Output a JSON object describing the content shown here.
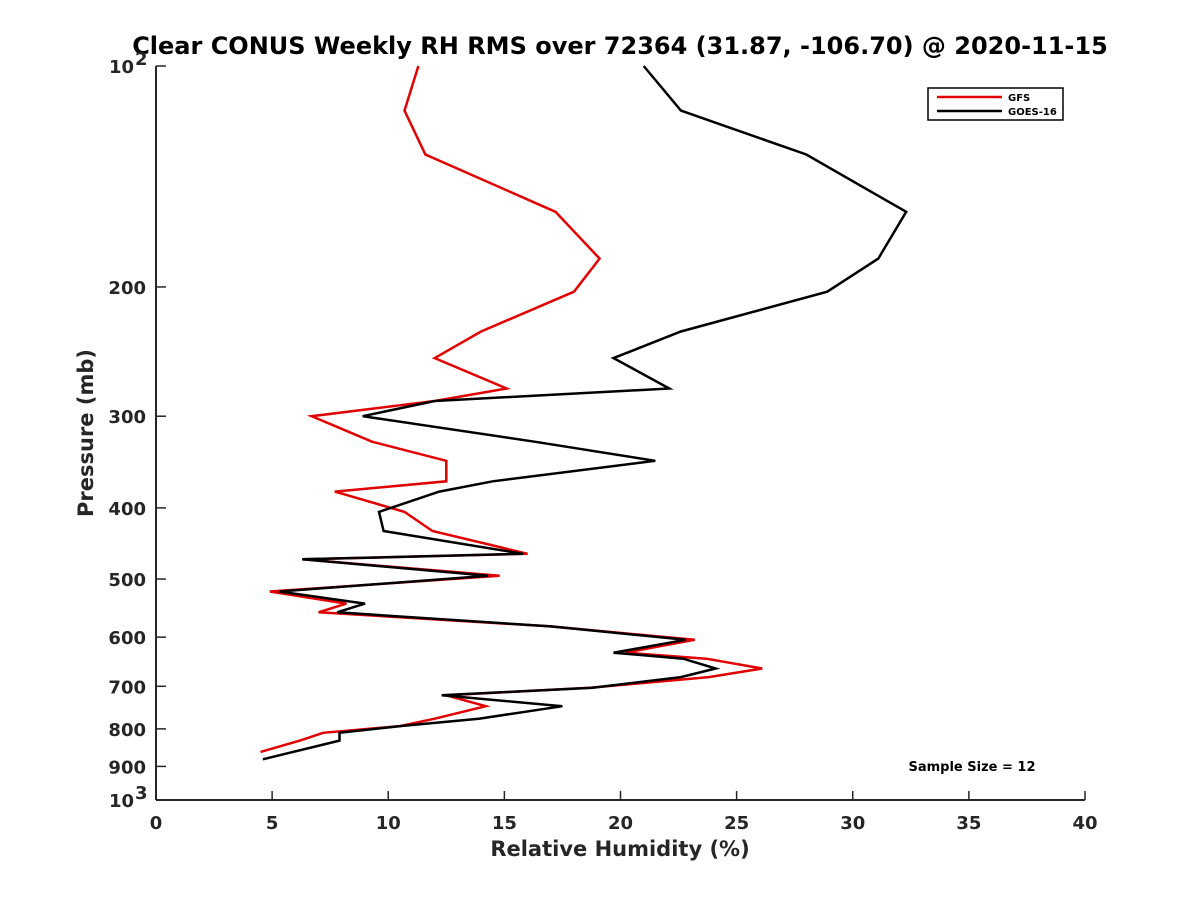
{
  "chart_data": {
    "type": "line",
    "title": "Clear CONUS Weekly RH RMS over 72364 (31.87, -106.70) @ 2020-11-15",
    "xlabel": "Relative Humidity (%)",
    "ylabel": "Pressure (mb)",
    "xlim": [
      0,
      40
    ],
    "ylim": [
      100,
      1000
    ],
    "y_scale": "log",
    "y_reversed": true,
    "x_ticks": [
      0,
      5,
      10,
      15,
      20,
      25,
      30,
      35,
      40
    ],
    "x_tick_labels": [
      "0",
      "5",
      "10",
      "15",
      "20",
      "25",
      "30",
      "35",
      "40"
    ],
    "y_ticks": [
      {
        "value": 100,
        "label": "10",
        "sup": "2"
      },
      {
        "value": 200,
        "label": "200",
        "sup": ""
      },
      {
        "value": 300,
        "label": "300",
        "sup": ""
      },
      {
        "value": 400,
        "label": "400",
        "sup": ""
      },
      {
        "value": 500,
        "label": "500",
        "sup": ""
      },
      {
        "value": 600,
        "label": "600",
        "sup": ""
      },
      {
        "value": 700,
        "label": "700",
        "sup": ""
      },
      {
        "value": 800,
        "label": "800",
        "sup": ""
      },
      {
        "value": 900,
        "label": "900",
        "sup": ""
      },
      {
        "value": 1000,
        "label": "10",
        "sup": "3"
      }
    ],
    "grid": false,
    "legend": {
      "position": "top-right",
      "entries": [
        "GFS",
        "GOES-16"
      ]
    },
    "annotation": "Sample Size = 12",
    "series": [
      {
        "name": "GFS",
        "color": "#e00000",
        "points": [
          [
            11.3,
            100
          ],
          [
            10.7,
            115
          ],
          [
            11.6,
            132
          ],
          [
            17.2,
            158
          ],
          [
            19.1,
            183
          ],
          [
            18.0,
            203
          ],
          [
            14.0,
            230
          ],
          [
            12.0,
            250
          ],
          [
            15.1,
            275
          ],
          [
            12.0,
            286
          ],
          [
            6.7,
            300
          ],
          [
            9.3,
            325
          ],
          [
            12.5,
            345
          ],
          [
            12.5,
            368
          ],
          [
            7.7,
            380
          ],
          [
            10.7,
            405
          ],
          [
            11.9,
            430
          ],
          [
            16.0,
            462
          ],
          [
            6.3,
            470
          ],
          [
            14.8,
            495
          ],
          [
            4.9,
            520
          ],
          [
            8.2,
            540
          ],
          [
            7.0,
            555
          ],
          [
            17.0,
            580
          ],
          [
            23.2,
            605
          ],
          [
            20.2,
            630
          ],
          [
            23.7,
            642
          ],
          [
            26.1,
            662
          ],
          [
            23.8,
            680
          ],
          [
            18.7,
            703
          ],
          [
            12.5,
            720
          ],
          [
            14.2,
            745
          ],
          [
            12.0,
            775
          ],
          [
            10.5,
            793
          ],
          [
            7.2,
            810
          ],
          [
            6.2,
            830
          ],
          [
            4.5,
            860
          ]
        ]
      },
      {
        "name": "GOES-16",
        "color": "#000000",
        "points": [
          [
            21.0,
            100
          ],
          [
            22.6,
            115
          ],
          [
            28.0,
            132
          ],
          [
            32.3,
            158
          ],
          [
            31.1,
            183
          ],
          [
            28.9,
            203
          ],
          [
            22.6,
            230
          ],
          [
            19.7,
            250
          ],
          [
            22.1,
            275
          ],
          [
            12.0,
            286
          ],
          [
            8.9,
            300
          ],
          [
            16.3,
            325
          ],
          [
            21.5,
            345
          ],
          [
            14.5,
            368
          ],
          [
            12.2,
            380
          ],
          [
            9.6,
            405
          ],
          [
            9.8,
            430
          ],
          [
            15.8,
            462
          ],
          [
            6.3,
            470
          ],
          [
            14.3,
            495
          ],
          [
            5.3,
            520
          ],
          [
            9.0,
            540
          ],
          [
            7.8,
            555
          ],
          [
            17.0,
            580
          ],
          [
            22.8,
            605
          ],
          [
            19.7,
            630
          ],
          [
            22.7,
            642
          ],
          [
            24.1,
            662
          ],
          [
            22.6,
            680
          ],
          [
            18.8,
            703
          ],
          [
            12.3,
            720
          ],
          [
            17.5,
            745
          ],
          [
            13.9,
            775
          ],
          [
            10.5,
            793
          ],
          [
            7.9,
            810
          ],
          [
            7.9,
            830
          ],
          [
            4.6,
            880
          ]
        ]
      }
    ]
  }
}
